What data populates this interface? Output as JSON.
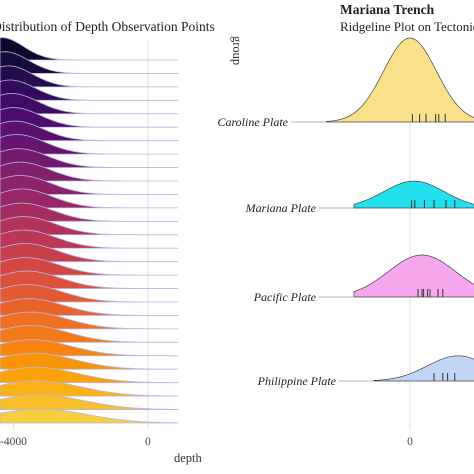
{
  "chart_data": [
    {
      "type": "area",
      "chart_kind": "ridgeline",
      "title": "Distribution of Depth Observation Points",
      "xlabel": "depth",
      "x_ticks": [
        -4000,
        0
      ],
      "x_tick_labels": [
        "-4000",
        "0"
      ],
      "xlim": [
        -4400,
        1700
      ],
      "palette": "inferno",
      "grid": true,
      "ridges": [
        {
          "peak": -4350,
          "width": 650,
          "height": 1.6,
          "color": "#0d0829"
        },
        {
          "peak": -4250,
          "width": 700,
          "height": 1.55,
          "color": "#170b3b"
        },
        {
          "peak": -4150,
          "width": 720,
          "height": 1.5,
          "color": "#240c4f"
        },
        {
          "peak": -4100,
          "width": 750,
          "height": 1.45,
          "color": "#320a5e"
        },
        {
          "peak": -4050,
          "width": 780,
          "height": 1.45,
          "color": "#400a67"
        },
        {
          "peak": -4000,
          "width": 800,
          "height": 1.4,
          "color": "#4d0d6c"
        },
        {
          "peak": -3950,
          "width": 820,
          "height": 1.4,
          "color": "#5a116e"
        },
        {
          "peak": -3900,
          "width": 850,
          "height": 1.4,
          "color": "#66146e"
        },
        {
          "peak": -3850,
          "width": 870,
          "height": 1.35,
          "color": "#731a6e"
        },
        {
          "peak": -3800,
          "width": 880,
          "height": 1.35,
          "color": "#801f6c"
        },
        {
          "peak": -3800,
          "width": 900,
          "height": 1.35,
          "color": "#8c2369"
        },
        {
          "peak": -3750,
          "width": 900,
          "height": 1.35,
          "color": "#992766"
        },
        {
          "peak": -3750,
          "width": 920,
          "height": 1.3,
          "color": "#a52c60"
        },
        {
          "peak": -3700,
          "width": 940,
          "height": 1.3,
          "color": "#b1325a"
        },
        {
          "peak": -3700,
          "width": 950,
          "height": 1.3,
          "color": "#bc3754"
        },
        {
          "peak": -3650,
          "width": 960,
          "height": 1.3,
          "color": "#c73e4c"
        },
        {
          "peak": -3650,
          "width": 980,
          "height": 1.25,
          "color": "#d24644"
        },
        {
          "peak": -3600,
          "width": 1000,
          "height": 1.25,
          "color": "#db503b"
        },
        {
          "peak": -3600,
          "width": 1020,
          "height": 1.25,
          "color": "#e35933"
        },
        {
          "peak": -3550,
          "width": 1050,
          "height": 1.2,
          "color": "#ea632a"
        },
        {
          "peak": -3500,
          "width": 1080,
          "height": 1.2,
          "color": "#f06f20"
        },
        {
          "peak": -3500,
          "width": 1100,
          "height": 1.2,
          "color": "#f47918"
        },
        {
          "peak": -3450,
          "width": 1150,
          "height": 1.15,
          "color": "#f8850f"
        },
        {
          "peak": -3400,
          "width": 1200,
          "height": 1.15,
          "color": "#fa9407"
        },
        {
          "peak": -3350,
          "width": 1250,
          "height": 1.1,
          "color": "#fca108"
        },
        {
          "peak": -3300,
          "width": 1300,
          "height": 1.1,
          "color": "#fbb117"
        },
        {
          "peak": -3250,
          "width": 1350,
          "height": 1.05,
          "color": "#f9be2a"
        },
        {
          "peak": -3200,
          "width": 1400,
          "height": 1.0,
          "color": "#f5cf40"
        }
      ]
    },
    {
      "type": "area",
      "chart_kind": "ridgeline",
      "title": "Mariana Trench",
      "subtitle": "Ridgeline Plot on Tectonic",
      "ylabel": "group",
      "x_ticks": [
        0
      ],
      "x_tick_labels": [
        "0"
      ],
      "xlim": [
        -1000,
        800
      ],
      "categories": [
        "Caroline Plate",
        "Mariana Plate",
        "Pacific Plate",
        "Philippine Plate"
      ],
      "series": [
        {
          "name": "Caroline Plate",
          "color": "#f9e08a",
          "peak": 0,
          "width": 330,
          "height": 1.0,
          "rug": [
            30,
            120,
            200,
            320,
            360,
            440
          ]
        },
        {
          "name": "Mariana Plate",
          "color": "#22e0ee",
          "peak": 50,
          "width": 380,
          "height": 0.32,
          "rug": [
            20,
            60,
            180,
            300,
            450,
            560
          ]
        },
        {
          "name": "Pacific Plate",
          "color": "#f7a8ec",
          "peak": 150,
          "width": 420,
          "height": 0.5,
          "rug": [
            100,
            150,
            170,
            220,
            250,
            350,
            410
          ]
        },
        {
          "name": "Philippine Plate",
          "color": "#bfd6f4",
          "peak": 600,
          "width": 380,
          "height": 0.3,
          "rug": [
            300,
            410,
            470,
            560
          ]
        }
      ]
    }
  ]
}
